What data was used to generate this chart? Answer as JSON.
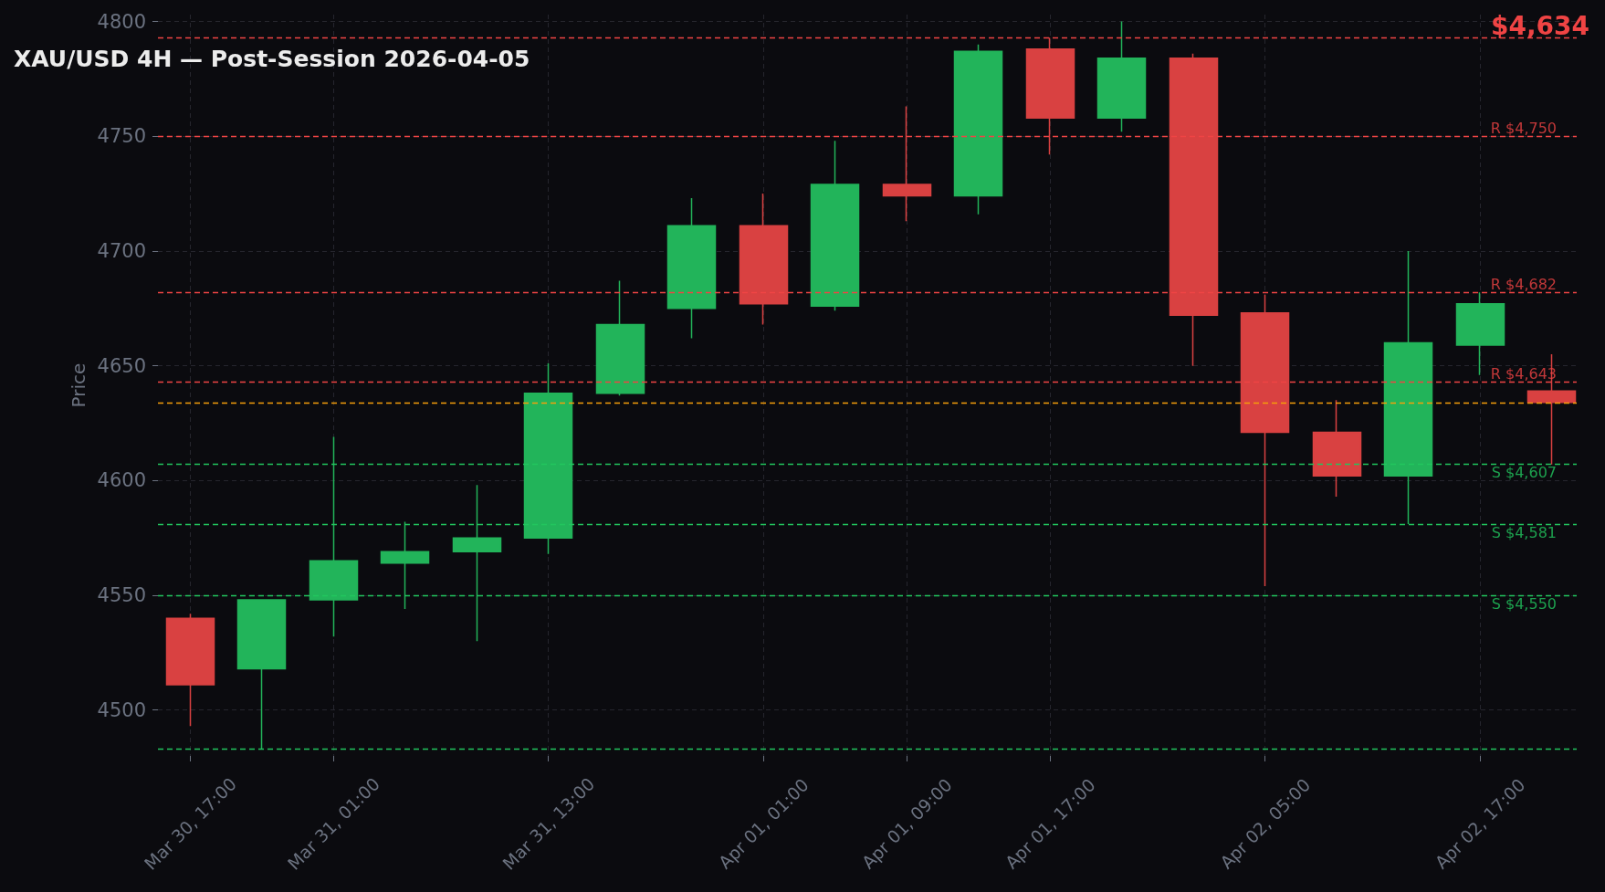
{
  "chart_data": {
    "type": "candlestick",
    "title": "XAU/USD 4H — Post-Session 2026-04-05",
    "ylabel": "Price",
    "annotations": [
      "$4,634"
    ],
    "x": [
      "2026-03-30T17:00",
      "2026-03-30T21:00",
      "2026-03-31T01:00",
      "2026-03-31T05:00",
      "2026-03-31T09:00",
      "2026-03-31T13:00",
      "2026-03-31T17:00",
      "2026-03-31T21:00",
      "2026-04-01T01:00",
      "2026-04-01T05:00",
      "2026-04-01T09:00",
      "2026-04-01T13:00",
      "2026-04-01T17:00",
      "2026-04-01T21:00",
      "2026-04-02T01:00",
      "2026-04-02T05:00",
      "2026-04-02T09:00",
      "2026-04-02T13:00",
      "2026-04-02T17:00",
      "2026-04-02T21:00"
    ],
    "ohlc": [
      [
        4540,
        4542,
        4493,
        4511
      ],
      [
        4518,
        4548,
        4483,
        4548
      ],
      [
        4548,
        4619,
        4532,
        4565
      ],
      [
        4564,
        4582,
        4544,
        4569
      ],
      [
        4569,
        4598,
        4530,
        4575
      ],
      [
        4575,
        4651,
        4568,
        4638
      ],
      [
        4638,
        4687,
        4637,
        4668
      ],
      [
        4675,
        4723,
        4662,
        4711
      ],
      [
        4711,
        4725,
        4668,
        4677
      ],
      [
        4676,
        4748,
        4674,
        4729
      ],
      [
        4729,
        4763,
        4713,
        4724
      ],
      [
        4724,
        4790,
        4716,
        4787
      ],
      [
        4788,
        4793,
        4742,
        4758
      ],
      [
        4758,
        4800,
        4752,
        4784
      ],
      [
        4784,
        4786,
        4650,
        4672
      ],
      [
        4673,
        4681,
        4554,
        4621
      ],
      [
        4621,
        4635,
        4593,
        4602
      ],
      [
        4602,
        4700,
        4581,
        4660
      ],
      [
        4659,
        4682,
        4646,
        4677
      ],
      [
        4639,
        4655,
        4607,
        4634
      ]
    ],
    "colors": [
      "#d94141",
      "#22b45a",
      "#22b45a",
      "#22b45a",
      "#22b45a",
      "#22b45a",
      "#22b45a",
      "#22b45a",
      "#d94141",
      "#22b45a",
      "#d94141",
      "#22b45a",
      "#d94141",
      "#22b45a",
      "#d94141",
      "#d94141",
      "#d94141",
      "#22b45a",
      "#22b45a",
      "#d94141"
    ],
    "xlim": [
      "2026-03-30T15:12",
      "2026-04-02T22:24"
    ],
    "xticks": [
      {
        "value": "2026-03-30T17:00",
        "label": "Mar 30, 17:00"
      },
      {
        "value": "2026-03-31T01:00",
        "label": "Mar 31, 01:00"
      },
      {
        "value": "2026-03-31T13:00",
        "label": "Mar 31, 13:00"
      },
      {
        "value": "2026-04-01T01:00",
        "label": "Apr 01, 01:00"
      },
      {
        "value": "2026-04-01T09:00",
        "label": "Apr 01, 09:00"
      },
      {
        "value": "2026-04-01T17:00",
        "label": "Apr 01, 17:00"
      },
      {
        "value": "2026-04-02T05:00",
        "label": "Apr 02, 05:00"
      },
      {
        "value": "2026-04-02T17:00",
        "label": "Apr 02, 17:00"
      }
    ],
    "ylim": [
      4480,
      4803
    ],
    "yticks": [
      4500,
      4550,
      4600,
      4650,
      4700,
      4750,
      4800
    ],
    "grid": true,
    "ref_lines": [
      {
        "axis": "y",
        "value": 4793,
        "color": "#ef4444",
        "line_style": "dashed"
      },
      {
        "axis": "y",
        "value": 4750,
        "label": "R $4,750",
        "color": "#ef4444",
        "line_style": "dashed"
      },
      {
        "axis": "y",
        "value": 4682,
        "label": "R $4,682",
        "color": "#ef4444",
        "line_style": "dashed"
      },
      {
        "axis": "y",
        "value": 4643,
        "label": "R $4,643",
        "color": "#ef4444",
        "line_style": "dashed"
      },
      {
        "axis": "y",
        "value": 4634,
        "color": "#f59e0b",
        "line_style": "dashed"
      },
      {
        "axis": "y",
        "value": 4607,
        "label": "S $4,607",
        "color": "#22c55e",
        "line_style": "dashed"
      },
      {
        "axis": "y",
        "value": 4581,
        "label": "S $4,581",
        "color": "#22c55e",
        "line_style": "dashed"
      },
      {
        "axis": "y",
        "value": 4550,
        "label": "S $4,550",
        "color": "#22c55e",
        "line_style": "dashed"
      },
      {
        "axis": "y",
        "value": 4483,
        "color": "#22c55e",
        "line_style": "dashed"
      }
    ]
  }
}
